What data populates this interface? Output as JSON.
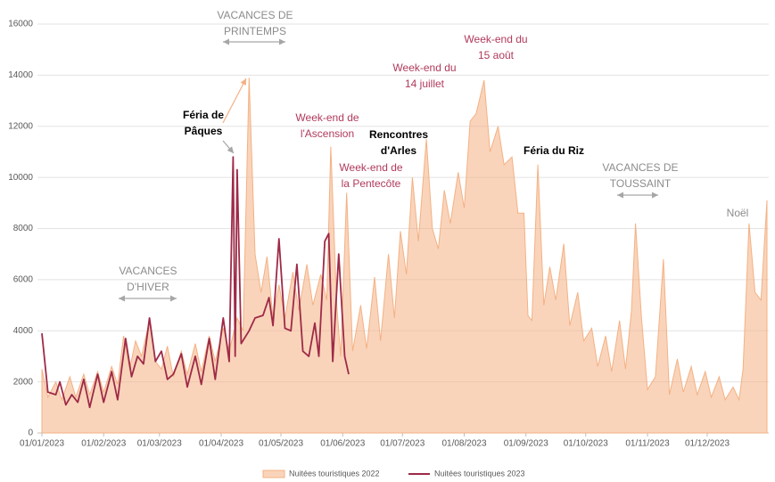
{
  "chart_data": {
    "type": "line",
    "xlim": [
      "01/01/2023",
      "31/12/2023"
    ],
    "xticks": [
      "01/01/2023",
      "01/02/2023",
      "01/03/2023",
      "01/04/2023",
      "01/05/2023",
      "01/06/2023",
      "01/07/2023",
      "01/08/2023",
      "01/09/2023",
      "01/10/2023",
      "01/11/2023",
      "01/12/2023"
    ],
    "ylim": [
      0,
      16000
    ],
    "yticks": [
      0,
      2000,
      4000,
      6000,
      8000,
      10000,
      12000,
      14000,
      16000
    ],
    "grid": true,
    "series": [
      {
        "name": "Nuitées touristiques 2022",
        "color": "#f4b183",
        "area": true,
        "x": [
          "01/01/2023",
          "04/01/2023",
          "08/01/2023",
          "11/01/2023",
          "15/01/2023",
          "18/01/2023",
          "22/01/2023",
          "25/01/2023",
          "29/01/2023",
          "01/02/2023",
          "05/02/2023",
          "08/02/2023",
          "11/02/2023",
          "14/02/2023",
          "17/02/2023",
          "20/02/2023",
          "24/02/2023",
          "27/02/2023",
          "02/03/2023",
          "05/03/2023",
          "08/03/2023",
          "12/03/2023",
          "15/03/2023",
          "19/03/2023",
          "22/03/2023",
          "26/03/2023",
          "29/03/2023",
          "02/04/2023",
          "05/04/2023",
          "09/04/2023",
          "12/04/2023",
          "15/04/2023",
          "18/04/2023",
          "21/04/2023",
          "24/04/2023",
          "27/04/2023",
          "30/04/2023",
          "03/05/2023",
          "07/05/2023",
          "10/05/2023",
          "14/05/2023",
          "17/05/2023",
          "21/05/2023",
          "24/05/2023",
          "26/05/2023",
          "29/05/2023",
          "31/05/2023",
          "03/06/2023",
          "06/06/2023",
          "10/06/2023",
          "13/06/2023",
          "17/06/2023",
          "20/06/2023",
          "24/06/2023",
          "27/06/2023",
          "30/06/2023",
          "03/07/2023",
          "06/07/2023",
          "09/07/2023",
          "13/07/2023",
          "16/07/2023",
          "19/07/2023",
          "22/07/2023",
          "25/07/2023",
          "29/07/2023",
          "01/08/2023",
          "04/08/2023",
          "07/08/2023",
          "11/08/2023",
          "14/08/2023",
          "18/08/2023",
          "21/08/2023",
          "25/08/2023",
          "28/08/2023",
          "31/08/2023",
          "02/09/2023",
          "04/09/2023",
          "07/09/2023",
          "10/09/2023",
          "13/09/2023",
          "16/09/2023",
          "20/09/2023",
          "23/09/2023",
          "27/09/2023",
          "30/09/2023",
          "04/10/2023",
          "07/10/2023",
          "11/10/2023",
          "14/10/2023",
          "18/10/2023",
          "21/10/2023",
          "24/10/2023",
          "26/10/2023",
          "29/10/2023",
          "01/11/2023",
          "05/11/2023",
          "09/11/2023",
          "12/11/2023",
          "16/11/2023",
          "19/11/2023",
          "23/11/2023",
          "26/11/2023",
          "30/11/2023",
          "03/12/2023",
          "07/12/2023",
          "10/12/2023",
          "14/12/2023",
          "17/12/2023",
          "19/12/2023",
          "22/12/2023",
          "25/12/2023",
          "28/12/2023",
          "31/12/2023"
        ],
        "values": [
          2500,
          1400,
          2000,
          1300,
          2200,
          1400,
          2300,
          1500,
          2400,
          1600,
          2600,
          1900,
          3800,
          2500,
          3600,
          3000,
          4400,
          2800,
          2500,
          3400,
          2200,
          3200,
          2300,
          3500,
          2400,
          3800,
          2800,
          4100,
          3200,
          4500,
          4000,
          13900,
          7000,
          5500,
          6900,
          4500,
          5800,
          4500,
          6300,
          4800,
          6600,
          5000,
          6200,
          5200,
          11200,
          5000,
          3000,
          9400,
          3200,
          5000,
          3300,
          6100,
          3600,
          7000,
          4500,
          7900,
          6200,
          10000,
          7500,
          11500,
          8000,
          7200,
          9500,
          8200,
          10200,
          8800,
          12200,
          12500,
          13800,
          11000,
          12000,
          10500,
          10800,
          8600,
          8600,
          4600,
          4400,
          10500,
          5000,
          6500,
          5200,
          7400,
          4200,
          5500,
          3600,
          4100,
          2600,
          3800,
          2400,
          4400,
          2500,
          4800,
          8200,
          4500,
          1700,
          2200,
          6800,
          1500,
          2900,
          1600,
          2600,
          1500,
          2400,
          1400,
          2200,
          1300,
          1800,
          1300,
          2500,
          8200,
          5500,
          5200,
          9100
        ]
      },
      {
        "name": "Nuitées touristiques 2023",
        "color": "#9e2a47",
        "area": false,
        "x": [
          "01/01/2023",
          "04/01/2023",
          "08/01/2023",
          "10/01/2023",
          "13/01/2023",
          "16/01/2023",
          "19/01/2023",
          "22/01/2023",
          "25/01/2023",
          "29/01/2023",
          "01/02/2023",
          "05/02/2023",
          "08/02/2023",
          "12/02/2023",
          "15/02/2023",
          "18/02/2023",
          "21/02/2023",
          "24/02/2023",
          "27/02/2023",
          "02/03/2023",
          "05/03/2023",
          "08/03/2023",
          "12/03/2023",
          "15/03/2023",
          "19/03/2023",
          "22/03/2023",
          "26/03/2023",
          "29/03/2023",
          "02/04/2023",
          "05/04/2023",
          "07/04/2023",
          "08/04/2023",
          "09/04/2023",
          "11/04/2023",
          "15/04/2023",
          "18/04/2023",
          "22/04/2023",
          "25/04/2023",
          "27/04/2023",
          "30/04/2023",
          "03/05/2023",
          "06/05/2023",
          "09/05/2023",
          "12/05/2023",
          "15/05/2023",
          "18/05/2023",
          "20/05/2023",
          "23/05/2023",
          "25/05/2023",
          "27/05/2023",
          "30/05/2023",
          "02/06/2023",
          "04/06/2023"
        ],
        "values": [
          3900,
          1600,
          1500,
          2000,
          1100,
          1500,
          1200,
          2100,
          1000,
          2300,
          1200,
          2400,
          1300,
          3700,
          2200,
          3000,
          2700,
          4500,
          2800,
          3200,
          2100,
          2300,
          3100,
          1800,
          3000,
          1900,
          3700,
          2100,
          4500,
          2800,
          10800,
          3000,
          10300,
          3500,
          4000,
          4500,
          4600,
          5300,
          4200,
          7600,
          4100,
          4000,
          6600,
          3200,
          3000,
          4300,
          3000,
          7500,
          7800,
          2800,
          7000,
          3000,
          2300
        ]
      }
    ],
    "annotations": [
      {
        "text": [
          "VACANCES DE",
          "PRINTEMPS"
        ],
        "color": "#8c8c8c",
        "bold": false
      },
      {
        "text": [
          "Féria de",
          "Pâques"
        ],
        "color": "#000000",
        "bold": true
      },
      {
        "text": [
          "Week-end de",
          "l'Ascension"
        ],
        "color": "#b03a5b",
        "bold": false
      },
      {
        "text": [
          "Rencontres",
          "d'Arles"
        ],
        "color": "#000000",
        "bold": true
      },
      {
        "text": [
          "Week-end de",
          "la Pentecôte"
        ],
        "color": "#b03a5b",
        "bold": false
      },
      {
        "text": [
          "Week-end du",
          "14 juillet"
        ],
        "color": "#b03a5b",
        "bold": false
      },
      {
        "text": [
          "Week-end du",
          "15 août"
        ],
        "color": "#b03a5b",
        "bold": false
      },
      {
        "text": [
          "Féria du Riz"
        ],
        "color": "#000000",
        "bold": true
      },
      {
        "text": [
          "VACANCES DE",
          "TOUSSAINT"
        ],
        "color": "#8c8c8c",
        "bold": false
      },
      {
        "text": [
          "VACANCES",
          "D'HIVER"
        ],
        "color": "#8c8c8c",
        "bold": false
      },
      {
        "text": [
          "Noël"
        ],
        "color": "#8c8c8c",
        "bold": false
      }
    ]
  }
}
